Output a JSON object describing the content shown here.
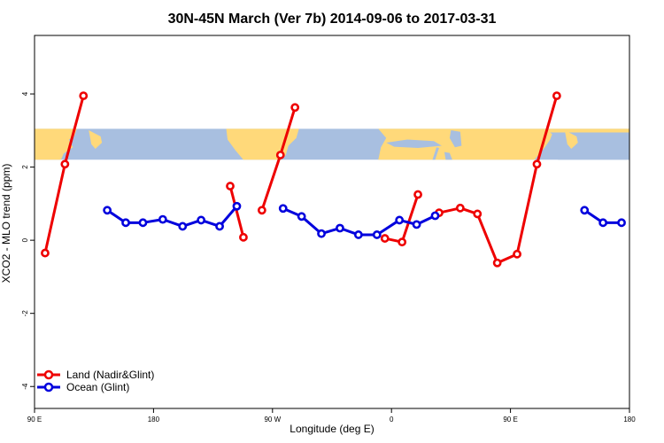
{
  "chart_data": {
    "type": "line",
    "title": "30N-45N March (Ver 7b)   2014-09-06 to 2017-03-31",
    "xlabel": "Longitude (deg E)",
    "ylabel": "XCO2 - MLO trend (ppm)",
    "xlim": [
      90,
      540
    ],
    "ylim": [
      -4.6,
      5.6
    ],
    "x_ticks": [
      {
        "value": 90,
        "label": "90 E"
      },
      {
        "value": 180,
        "label": "180"
      },
      {
        "value": 270,
        "label": "90 W"
      },
      {
        "value": 360,
        "label": "0"
      },
      {
        "value": 450,
        "label": "90 E"
      },
      {
        "value": 540,
        "label": "180"
      }
    ],
    "y_ticks": [
      {
        "value": -4,
        "label": "-4"
      },
      {
        "value": -2,
        "label": "-2"
      },
      {
        "value": 0,
        "label": "0"
      },
      {
        "value": 2,
        "label": "2"
      },
      {
        "value": 4,
        "label": "4"
      }
    ],
    "map_band": {
      "ymin": 2.2,
      "ymax": 3.05,
      "ocean_color": "#a8bfe0",
      "land_color": "#ffd97a"
    },
    "grid": false,
    "legend_position": "bottom-left",
    "series": [
      {
        "name": "Land (Nadir&Glint)",
        "color": "#ee0000",
        "segments": [
          [
            [
              98,
              -0.35
            ],
            [
              113,
              2.08
            ],
            [
              127,
              3.95
            ]
          ],
          [
            [
              238,
              1.48
            ],
            [
              248,
              0.08
            ]
          ],
          [
            [
              262,
              0.82
            ],
            [
              276,
              2.33
            ],
            [
              287,
              3.63
            ]
          ],
          [
            [
              355,
              0.05
            ],
            [
              368,
              -0.05
            ],
            [
              380,
              1.25
            ]
          ],
          [
            [
              396,
              0.75
            ],
            [
              412,
              0.88
            ],
            [
              425,
              0.72
            ],
            [
              440,
              -0.62
            ],
            [
              455,
              -0.38
            ],
            [
              470,
              2.08
            ],
            [
              485,
              3.95
            ]
          ]
        ]
      },
      {
        "name": "Ocean (Glint)",
        "color": "#0000dd",
        "segments": [
          [
            [
              145,
              0.82
            ],
            [
              159,
              0.48
            ],
            [
              172,
              0.48
            ],
            [
              187,
              0.57
            ],
            [
              202,
              0.38
            ],
            [
              216,
              0.55
            ],
            [
              230,
              0.38
            ],
            [
              243,
              0.93
            ]
          ],
          [
            [
              278,
              0.87
            ],
            [
              292,
              0.65
            ],
            [
              307,
              0.18
            ],
            [
              321,
              0.33
            ],
            [
              335,
              0.15
            ],
            [
              349,
              0.15
            ],
            [
              366,
              0.55
            ],
            [
              379,
              0.43
            ],
            [
              393,
              0.67
            ]
          ],
          [
            [
              506,
              0.82
            ],
            [
              520,
              0.48
            ],
            [
              534,
              0.48
            ]
          ]
        ]
      }
    ]
  }
}
